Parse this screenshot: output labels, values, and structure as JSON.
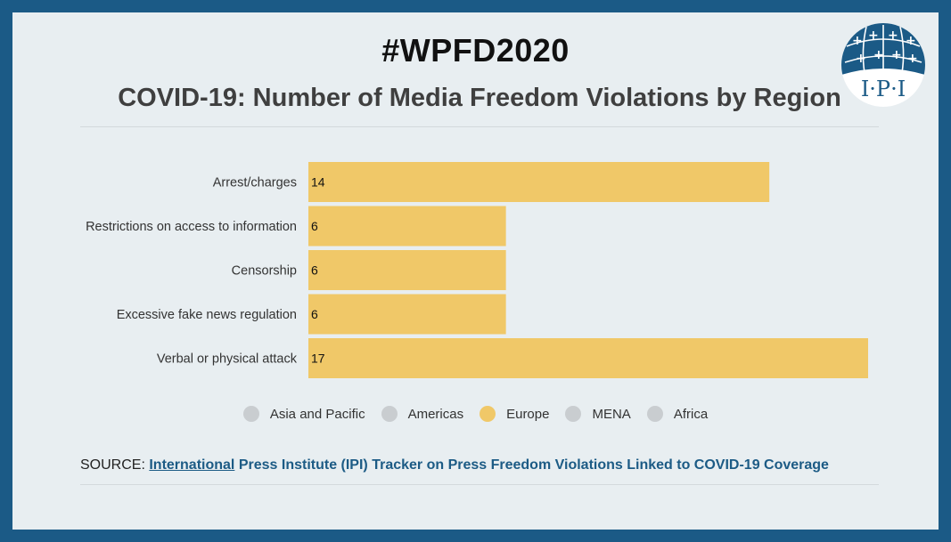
{
  "header": {
    "hashtag": "#WPFD2020",
    "title": "COVID-19: Number of Media Freedom Violations by Region"
  },
  "logo": {
    "text": "I·P·I",
    "bg_color": "#1b5a86"
  },
  "chart_data": {
    "type": "bar",
    "orientation": "horizontal",
    "title": "COVID-19: Number of Media Freedom Violations by Region",
    "categories": [
      "Arrest/charges",
      "Restrictions on access to information",
      "Censorship",
      "Excessive fake news regulation",
      "Verbal or physical attack"
    ],
    "series": [
      {
        "name": "Europe",
        "color": "#f0c868",
        "values": [
          14,
          6,
          6,
          6,
          17
        ]
      }
    ],
    "xlim": [
      0,
      17
    ],
    "grid": false,
    "legend_position": "bottom"
  },
  "legend": {
    "items": [
      {
        "label": "Asia and Pacific",
        "color": "#c9cdd0"
      },
      {
        "label": "Americas",
        "color": "#c9cdd0"
      },
      {
        "label": "Europe",
        "color": "#f0c868"
      },
      {
        "label": "MENA",
        "color": "#c9cdd0"
      },
      {
        "label": "Africa",
        "color": "#c9cdd0"
      }
    ]
  },
  "source": {
    "label": "SOURCE:",
    "link_text": "International",
    "rest_text": "Press Institute (IPI) Tracker on Press Freedom Violations Linked to COVID-19 Coverage"
  },
  "colors": {
    "frame": "#1b5a86",
    "card": "#e8eef1",
    "link": "#1c5b85"
  }
}
